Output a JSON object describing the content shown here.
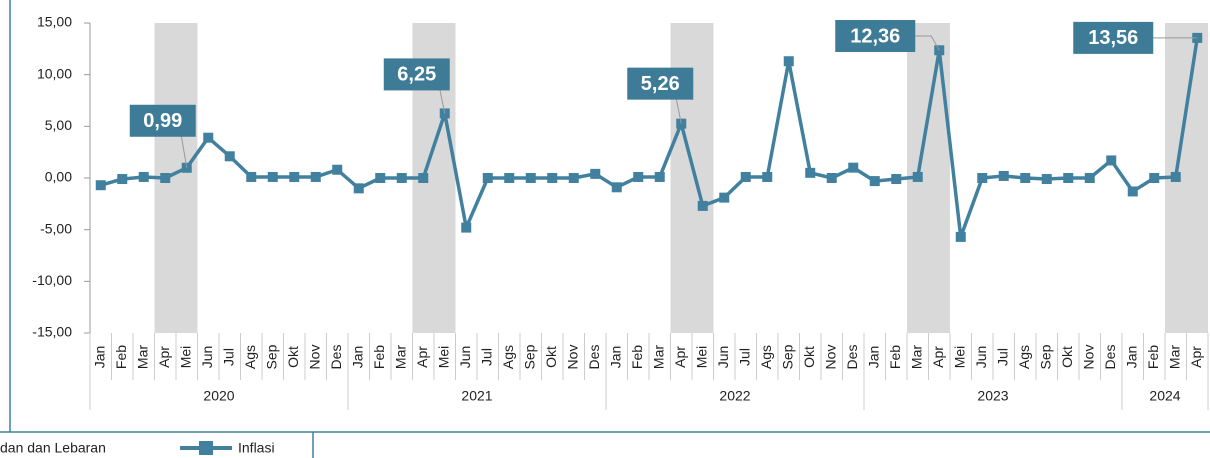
{
  "chart_data": {
    "type": "line",
    "series": [
      {
        "name": "Inflasi",
        "color": "#41809e",
        "values": [
          -0.7,
          -0.1,
          0.1,
          0.0,
          0.99,
          3.9,
          2.1,
          0.1,
          0.1,
          0.1,
          0.1,
          0.8,
          -1.0,
          0.0,
          0.0,
          0.0,
          6.25,
          -4.8,
          0.0,
          0.0,
          0.0,
          0.0,
          0.0,
          0.4,
          -0.9,
          0.1,
          0.1,
          5.26,
          -2.7,
          -1.9,
          0.1,
          0.1,
          11.3,
          0.5,
          0.0,
          1.0,
          -0.3,
          -0.1,
          0.1,
          12.36,
          -5.7,
          0.0,
          0.2,
          0.0,
          -0.1,
          0.0,
          0.0,
          1.7,
          -1.3,
          0.0,
          0.1,
          13.56
        ],
        "value_labels": [
          null,
          null,
          null,
          null,
          "0,99",
          null,
          null,
          null,
          null,
          null,
          null,
          null,
          null,
          null,
          null,
          null,
          "6,25",
          null,
          null,
          null,
          null,
          null,
          null,
          null,
          null,
          null,
          null,
          "5,26",
          null,
          null,
          null,
          null,
          null,
          null,
          null,
          null,
          null,
          null,
          null,
          "12,36",
          null,
          null,
          null,
          null,
          null,
          null,
          null,
          null,
          null,
          null,
          null,
          "13,56"
        ]
      }
    ],
    "groups": [
      {
        "name": "2020",
        "months": [
          "Jan",
          "Feb",
          "Mar",
          "Apr",
          "Mei",
          "Jun",
          "Jul",
          "Ags",
          "Sep",
          "Okt",
          "Nov",
          "Des"
        ]
      },
      {
        "name": "2021",
        "months": [
          "Jan",
          "Feb",
          "Mar",
          "Apr",
          "Mei",
          "Jun",
          "Jul",
          "Ags",
          "Sep",
          "Okt",
          "Nov",
          "Des"
        ]
      },
      {
        "name": "2022",
        "months": [
          "Jan",
          "Feb",
          "Mar",
          "Apr",
          "Mei",
          "Jun",
          "Jul",
          "Ags",
          "Sep",
          "Okt",
          "Nov",
          "Des"
        ]
      },
      {
        "name": "2023",
        "months": [
          "Jan",
          "Feb",
          "Mar",
          "Apr",
          "Mei",
          "Jun",
          "Jul",
          "Ags",
          "Sep",
          "Okt",
          "Nov",
          "Des"
        ]
      },
      {
        "name": "2024",
        "months": [
          "Jan",
          "Feb",
          "Mar",
          "Apr"
        ]
      }
    ],
    "shaded": {
      "name": "dan dan Lebaran",
      "color": "#d9d9d9",
      "flags": [
        false,
        false,
        false,
        true,
        true,
        false,
        false,
        false,
        false,
        false,
        false,
        false,
        false,
        false,
        false,
        true,
        true,
        false,
        false,
        false,
        false,
        false,
        false,
        false,
        false,
        false,
        false,
        true,
        true,
        false,
        false,
        false,
        false,
        false,
        false,
        false,
        false,
        false,
        true,
        true,
        false,
        false,
        false,
        false,
        false,
        false,
        false,
        false,
        false,
        false,
        true,
        true
      ]
    },
    "ylim": [
      -15,
      15
    ],
    "yticks": [
      {
        "value": -15,
        "label": "-15,00"
      },
      {
        "value": -10,
        "label": "-10,00"
      },
      {
        "value": -5,
        "label": "-5,00"
      },
      {
        "value": 0,
        "label": "0,00"
      },
      {
        "value": 5,
        "label": "5,00"
      },
      {
        "value": 10,
        "label": "10,00"
      },
      {
        "value": 15,
        "label": "15,00"
      }
    ],
    "label_color": "#3e7b96"
  }
}
